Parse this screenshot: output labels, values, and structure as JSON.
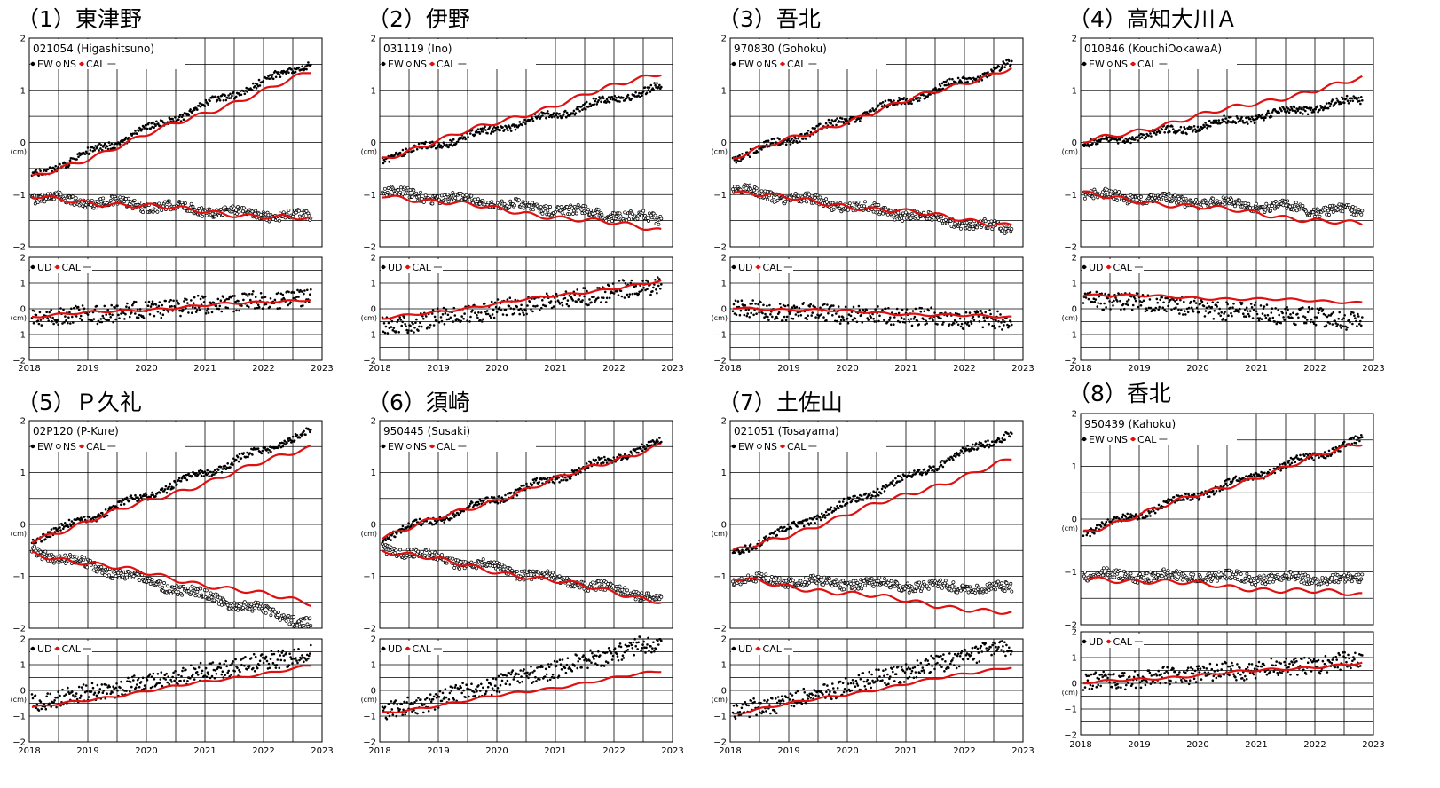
{
  "figure": {
    "colors": {
      "obs": "#000000",
      "cal": "#e01010",
      "grid": "#000000"
    },
    "xticks": [
      "2018",
      "2019",
      "2020",
      "2021",
      "2022",
      "2023"
    ],
    "yunit": "(cm)",
    "legend": {
      "ew": "EW",
      "ns": "NS",
      "ud": "UD",
      "cal": "CAL"
    }
  },
  "chart_data": [
    {
      "type": "scatter",
      "title": "（1）東津野",
      "station_label": "021054 (Higashitsuno)",
      "xlim": [
        2018,
        2023
      ],
      "horizontal": {
        "ylim": [
          -2,
          2
        ],
        "ew_start": -0.65,
        "ew_end": 1.6,
        "ns_start": -1.05,
        "ns_end": -1.45,
        "cal_ew_start": -0.7,
        "cal_ew_end": 1.4,
        "cal_ns_start": -1.05,
        "cal_ns_end": -1.5
      },
      "vertical": {
        "ylim": [
          -2,
          2
        ],
        "ud_start": -0.4,
        "ud_end": 0.5,
        "cal_start": -0.3,
        "cal_end": 0.4
      }
    },
    {
      "type": "scatter",
      "title": "（2）伊野",
      "station_label": "031119 (Ino)",
      "xlim": [
        2018,
        2023
      ],
      "horizontal": {
        "ylim": [
          -2,
          2
        ],
        "ew_start": -0.3,
        "ew_end": 1.1,
        "ns_start": -0.95,
        "ns_end": -1.5,
        "cal_ew_start": -0.3,
        "cal_ew_end": 1.4,
        "cal_ns_start": -1.0,
        "cal_ns_end": -1.7
      },
      "vertical": {
        "ylim": [
          -2,
          2
        ],
        "ud_start": -0.7,
        "ud_end": 1.0,
        "cal_start": -0.4,
        "cal_end": 1.1
      }
    },
    {
      "type": "scatter",
      "title": "（3）吾北",
      "station_label": "970830 (Gohoku)",
      "xlim": [
        2018,
        2023
      ],
      "horizontal": {
        "ylim": [
          -2,
          2
        ],
        "ew_start": -0.3,
        "ew_end": 1.55,
        "ns_start": -0.9,
        "ns_end": -1.7,
        "cal_ew_start": -0.3,
        "cal_ew_end": 1.5,
        "cal_ns_start": -0.95,
        "cal_ns_end": -1.6
      },
      "vertical": {
        "ylim": [
          -2,
          2
        ],
        "ud_start": 0.0,
        "ud_end": -0.5,
        "cal_start": 0.05,
        "cal_end": -0.35
      }
    },
    {
      "type": "scatter",
      "title": "（4）高知大川Ａ",
      "station_label": "010846 (KouchiOokawaA)",
      "xlim": [
        2018,
        2023
      ],
      "horizontal": {
        "ylim": [
          -2,
          2
        ],
        "ew_start": -0.05,
        "ew_end": 0.85,
        "ns_start": -1.0,
        "ns_end": -1.35,
        "cal_ew_start": 0.0,
        "cal_ew_end": 1.25,
        "cal_ns_start": -1.0,
        "cal_ns_end": -1.6
      },
      "vertical": {
        "ylim": [
          -2,
          2
        ],
        "ud_start": 0.4,
        "ud_end": -0.5,
        "cal_start": 0.55,
        "cal_end": 0.25
      }
    },
    {
      "type": "scatter",
      "title": "（5）Ｐ久礼",
      "station_label": "02P120 (P-Kure)",
      "xlim": [
        2018,
        2023
      ],
      "horizontal": {
        "ylim": [
          -2,
          2
        ],
        "ew_start": -0.3,
        "ew_end": 1.85,
        "ns_start": -0.5,
        "ns_end": -1.95,
        "cal_ew_start": -0.3,
        "cal_ew_end": 1.55,
        "cal_ns_start": -0.55,
        "cal_ns_end": -1.55
      },
      "vertical": {
        "ylim": [
          -2,
          2
        ],
        "ud_start": -0.5,
        "ud_end": 1.5,
        "cal_start": -0.7,
        "cal_end": 1.0
      }
    },
    {
      "type": "scatter",
      "title": "（6）須崎",
      "station_label": "950445 (Susaki)",
      "xlim": [
        2018,
        2023
      ],
      "horizontal": {
        "ylim": [
          -2,
          2
        ],
        "ew_start": -0.25,
        "ew_end": 1.65,
        "ns_start": -0.45,
        "ns_end": -1.45,
        "cal_ew_start": -0.25,
        "cal_ew_end": 1.6,
        "cal_ns_start": -0.5,
        "cal_ns_end": -1.5
      },
      "vertical": {
        "ylim": [
          -2,
          2
        ],
        "ud_start": -0.9,
        "ud_end": 2.0,
        "cal_start": -0.9,
        "cal_end": 0.8
      }
    },
    {
      "type": "scatter",
      "title": "（7）土佐山",
      "station_label": "021051 (Tosayama)",
      "xlim": [
        2018,
        2023
      ],
      "horizontal": {
        "ylim": [
          -2,
          2
        ],
        "ew_start": -0.55,
        "ew_end": 1.85,
        "ns_start": -1.05,
        "ns_end": -1.25,
        "cal_ew_start": -0.55,
        "cal_ew_end": 1.3,
        "cal_ns_start": -1.05,
        "cal_ns_end": -1.75
      },
      "vertical": {
        "ylim": [
          -2,
          2
        ],
        "ud_start": -0.9,
        "ud_end": 1.8,
        "cal_start": -0.9,
        "cal_end": 1.0
      }
    },
    {
      "type": "scatter",
      "title": "（8）香北",
      "station_label": "950439 (Kahoku)",
      "xlim": [
        2018,
        2023
      ],
      "horizontal": {
        "ylim": [
          -2,
          2
        ],
        "ew_start": -0.25,
        "ew_end": 1.55,
        "ns_start": -1.05,
        "ns_end": -1.15,
        "cal_ew_start": -0.25,
        "cal_ew_end": 1.5,
        "cal_ns_start": -1.1,
        "cal_ns_end": -1.45
      },
      "vertical": {
        "ylim": [
          -2,
          2
        ],
        "ud_start": 0.0,
        "ud_end": 0.9,
        "cal_start": 0.0,
        "cal_end": 0.8
      }
    }
  ]
}
